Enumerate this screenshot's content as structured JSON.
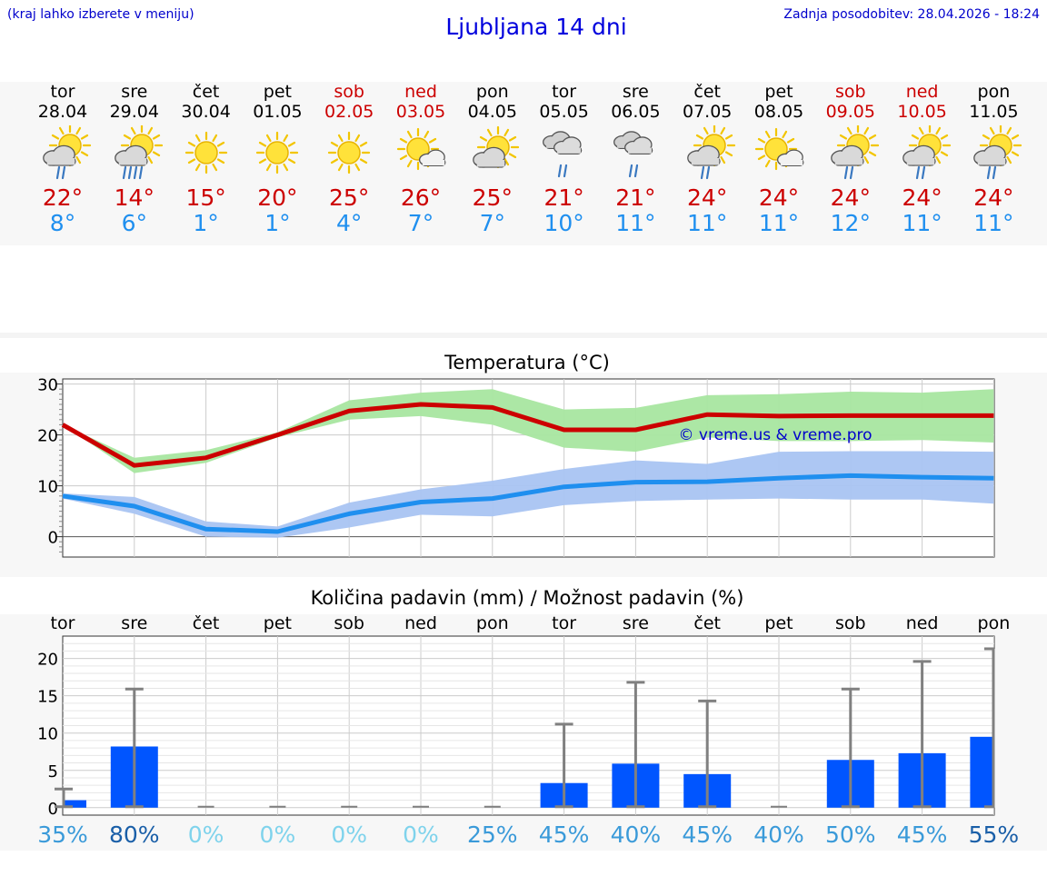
{
  "header": {
    "note": "(kraj lahko izberete v meniju)",
    "title": "Ljubljana 14 dni",
    "updated": "Zadnja posodobitev: 28.04.2026 - 18:24"
  },
  "colors": {
    "max_temp": "#cc0000",
    "min_temp": "#1f8fef",
    "max_band": "#a8e6a0",
    "min_band": "#a9c4f2",
    "precip_bar": "#0055ff",
    "link": "#0000cc"
  },
  "forecast": [
    {
      "day": "tor",
      "date": "28.04",
      "weekend": false,
      "icon": "sun-cloud-rain-icon",
      "max": "22°",
      "min": "8°"
    },
    {
      "day": "sre",
      "date": "29.04",
      "weekend": false,
      "icon": "sun-cloud-heavy-rain-icon",
      "max": "14°",
      "min": "6°"
    },
    {
      "day": "čet",
      "date": "30.04",
      "weekend": false,
      "icon": "sun-icon",
      "max": "15°",
      "min": "1°"
    },
    {
      "day": "pet",
      "date": "01.05",
      "weekend": false,
      "icon": "sun-icon",
      "max": "20°",
      "min": "1°"
    },
    {
      "day": "sob",
      "date": "02.05",
      "weekend": true,
      "icon": "sun-icon",
      "max": "25°",
      "min": "4°"
    },
    {
      "day": "ned",
      "date": "03.05",
      "weekend": true,
      "icon": "sun-small-cloud-icon",
      "max": "26°",
      "min": "7°"
    },
    {
      "day": "pon",
      "date": "04.05",
      "weekend": false,
      "icon": "sun-cloud-icon",
      "max": "25°",
      "min": "7°"
    },
    {
      "day": "tor",
      "date": "05.05",
      "weekend": false,
      "icon": "cloud-rain-icon",
      "max": "21°",
      "min": "10°"
    },
    {
      "day": "sre",
      "date": "06.05",
      "weekend": false,
      "icon": "cloud-rain-icon",
      "max": "21°",
      "min": "11°"
    },
    {
      "day": "čet",
      "date": "07.05",
      "weekend": false,
      "icon": "sun-cloud-rain-icon",
      "max": "24°",
      "min": "11°"
    },
    {
      "day": "pet",
      "date": "08.05",
      "weekend": false,
      "icon": "sun-small-cloud-icon",
      "max": "24°",
      "min": "11°"
    },
    {
      "day": "sob",
      "date": "09.05",
      "weekend": true,
      "icon": "sun-cloud-rain-icon",
      "max": "24°",
      "min": "12°"
    },
    {
      "day": "ned",
      "date": "10.05",
      "weekend": true,
      "icon": "sun-cloud-rain-icon",
      "max": "24°",
      "min": "11°"
    },
    {
      "day": "pon",
      "date": "11.05",
      "weekend": false,
      "icon": "sun-cloud-rain-icon",
      "max": "24°",
      "min": "11°"
    }
  ],
  "chart_data": [
    {
      "type": "line",
      "title": "Temperatura (°C)",
      "watermark": "© vreme.us & vreme.pro",
      "x": [
        "28.04",
        "29.04",
        "30.04",
        "01.05",
        "02.05",
        "03.05",
        "04.05",
        "05.05",
        "06.05",
        "07.05",
        "08.05",
        "09.05",
        "10.05",
        "11.05"
      ],
      "ylim": [
        -4,
        31
      ],
      "yticks": [
        0,
        10,
        20,
        30
      ],
      "grid": true,
      "series": [
        {
          "name": "max",
          "values": [
            22,
            14,
            15.5,
            20,
            24.7,
            26,
            25.4,
            21,
            21,
            24,
            23.7,
            23.8,
            23.8,
            23.8
          ],
          "band_low": [
            22,
            12.5,
            14.5,
            19.5,
            23,
            23.7,
            22,
            17.5,
            16.7,
            19.5,
            18.8,
            18.8,
            19,
            18.5
          ],
          "band_high": [
            22,
            15.5,
            17,
            20.5,
            26.8,
            28.3,
            29,
            25,
            25.3,
            27.8,
            28,
            28.5,
            28.3,
            29
          ]
        },
        {
          "name": "min",
          "values": [
            8,
            6,
            1.5,
            1,
            4.5,
            6.8,
            7.5,
            9.8,
            10.7,
            10.8,
            11.5,
            12,
            11.7,
            11.5
          ],
          "band_low": [
            7.5,
            4.5,
            0,
            -0.2,
            1.8,
            4.3,
            4,
            6.2,
            7,
            7.3,
            7.5,
            7.3,
            7.3,
            6.5
          ],
          "band_high": [
            8.5,
            7.8,
            3,
            2,
            6.7,
            9.3,
            11,
            13.3,
            15,
            14.3,
            16.7,
            16.8,
            16.8,
            16.7
          ]
        }
      ]
    },
    {
      "type": "bar",
      "title": "Količina padavin (mm) / Možnost padavin (%)",
      "categories": [
        "tor",
        "sre",
        "čet",
        "pet",
        "sob",
        "ned",
        "pon",
        "tor",
        "sre",
        "čet",
        "pet",
        "sob",
        "ned",
        "pon"
      ],
      "values": [
        1,
        8.2,
        0,
        0,
        0,
        0,
        0,
        3.3,
        5.9,
        4.5,
        0,
        6.4,
        7.3,
        9.5
      ],
      "error_high": [
        2.5,
        15.9,
        0,
        0,
        0,
        0,
        0,
        11.2,
        16.8,
        14.3,
        0,
        15.9,
        19.6,
        21.3
      ],
      "probability": [
        "35%",
        "80%",
        "0%",
        "0%",
        "0%",
        "0%",
        "25%",
        "45%",
        "40%",
        "45%",
        "40%",
        "50%",
        "45%",
        "55%"
      ],
      "probability_colors": [
        "#3a9ad9",
        "#1a5fa8",
        "#7fd3ec",
        "#7fd3ec",
        "#7fd3ec",
        "#7fd3ec",
        "#3a9ad9",
        "#3a9ad9",
        "#3a9ad9",
        "#3a9ad9",
        "#3a9ad9",
        "#3a9ad9",
        "#3a9ad9",
        "#1a5fa8"
      ],
      "ylim": [
        -1,
        23
      ],
      "yticks": [
        0,
        5,
        10,
        15,
        20
      ],
      "grid": true
    }
  ]
}
